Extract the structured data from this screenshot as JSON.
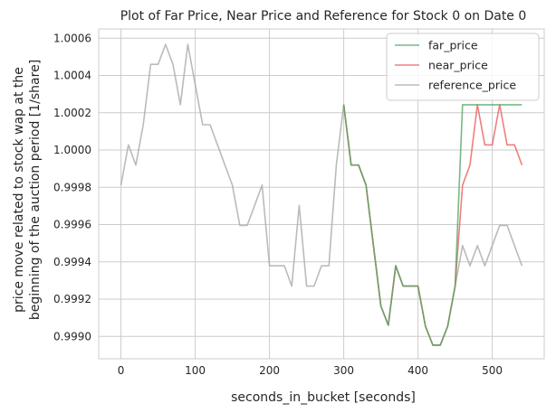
{
  "chart_data": {
    "type": "line",
    "title": "Plot of Far Price, Near Price and Reference for Stock 0 on Date 0",
    "xlabel": "seconds_in_bucket [seconds]",
    "ylabel": "price move related to stock wap at the beginning of the auction period [1/share]",
    "ylabel_lines": [
      "price move related to stock wap at the",
      "beginning of the auction period [1/share]"
    ],
    "xlim": [
      -30,
      570
    ],
    "ylim": [
      0.99888,
      1.00065
    ],
    "xticks": [
      0,
      100,
      200,
      300,
      400,
      500
    ],
    "yticks": [
      0.999,
      0.9992,
      0.9994,
      0.9996,
      0.9998,
      1.0,
      1.0002,
      1.0004,
      1.0006
    ],
    "ytick_labels": [
      "0.9990",
      "0.9992",
      "0.9994",
      "0.9996",
      "0.9998",
      "1.0000",
      "1.0002",
      "1.0004",
      "1.0006"
    ],
    "grid": true,
    "legend_position": "top-right",
    "series": [
      {
        "name": "far_price",
        "color": "#55a868",
        "x": [
          300,
          310,
          320,
          330,
          340,
          350,
          360,
          370,
          380,
          390,
          400,
          410,
          420,
          430,
          440,
          450,
          460,
          470,
          480,
          490,
          500,
          510,
          520,
          530,
          540
        ],
        "y": [
          1.000243,
          0.999919,
          0.999919,
          0.999812,
          0.999487,
          0.999163,
          0.99906,
          0.999379,
          0.99927,
          0.99927,
          0.99927,
          0.999055,
          0.998953,
          0.998953,
          0.999055,
          0.99927,
          1.000243,
          1.000243,
          1.000243,
          1.000243,
          1.000243,
          1.000243,
          1.000243,
          1.000243,
          1.000243
        ]
      },
      {
        "name": "near_price",
        "color": "#e8605f",
        "x": [
          300,
          310,
          320,
          330,
          340,
          350,
          360,
          370,
          380,
          390,
          400,
          410,
          420,
          430,
          440,
          450,
          460,
          470,
          480,
          490,
          500,
          510,
          520,
          530,
          540
        ],
        "y": [
          1.000243,
          0.999919,
          0.999919,
          0.999812,
          0.999487,
          0.999163,
          0.99906,
          0.999379,
          0.99927,
          0.99927,
          0.99927,
          0.999055,
          0.998953,
          0.998953,
          0.999055,
          0.99927,
          0.999812,
          0.999919,
          1.000243,
          1.000028,
          1.000028,
          1.000243,
          1.000028,
          1.000028,
          0.999919
        ]
      },
      {
        "name": "reference_price",
        "color": "#aaaaaa",
        "x": [
          0,
          10,
          20,
          30,
          40,
          50,
          60,
          70,
          80,
          90,
          100,
          110,
          120,
          130,
          140,
          150,
          160,
          170,
          180,
          190,
          200,
          210,
          220,
          230,
          240,
          250,
          260,
          270,
          280,
          290,
          300,
          310,
          320,
          330,
          340,
          350,
          360,
          370,
          380,
          390,
          400,
          410,
          420,
          430,
          440,
          450,
          460,
          470,
          480,
          490,
          500,
          510,
          520,
          530,
          540
        ],
        "y": [
          0.999812,
          1.000028,
          0.999919,
          1.000136,
          1.00046,
          1.00046,
          1.000567,
          1.00046,
          1.000243,
          1.000567,
          1.000351,
          1.000136,
          1.000136,
          1.000028,
          0.999919,
          0.999812,
          0.999596,
          0.999596,
          0.999703,
          0.999812,
          0.999379,
          0.999379,
          0.999379,
          0.99927,
          0.999703,
          0.99927,
          0.99927,
          0.999379,
          0.999379,
          0.999919,
          1.000243,
          0.999919,
          0.999919,
          0.999812,
          0.999487,
          0.999163,
          0.99906,
          0.999379,
          0.99927,
          0.99927,
          0.99927,
          0.999055,
          0.998953,
          0.998953,
          0.999055,
          0.99927,
          0.999487,
          0.999379,
          0.999487,
          0.999379,
          0.999487,
          0.999596,
          0.999596,
          0.999487,
          0.999379
        ]
      }
    ]
  }
}
